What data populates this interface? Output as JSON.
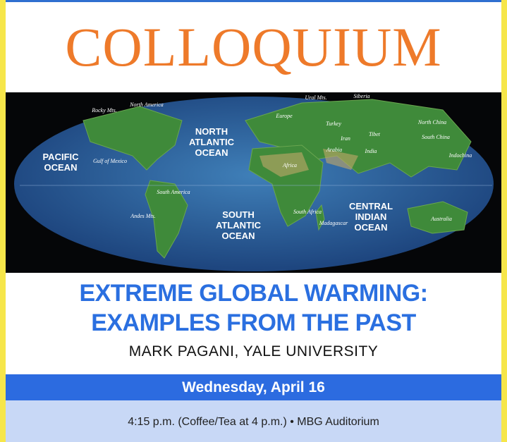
{
  "header": {
    "title": "COLLOQUIUM"
  },
  "map": {
    "ocean_labels": [
      {
        "lines": [
          "PACIFIC",
          "OCEAN"
        ]
      },
      {
        "lines": [
          "NORTH",
          "ATLANTIC",
          "OCEAN"
        ]
      },
      {
        "lines": [
          "SOUTH",
          "ATLANTIC",
          "OCEAN"
        ]
      },
      {
        "lines": [
          "CENTRAL",
          "INDIAN",
          "OCEAN"
        ]
      }
    ],
    "place_labels": [
      "Rocky Mts.",
      "North America",
      "Gulf of Mexico",
      "Ural Mts.",
      "Siberia",
      "Europe",
      "Turkey",
      "Iran",
      "Arabia",
      "Africa",
      "India",
      "Tibet",
      "North China",
      "South China",
      "Indochina",
      "South America",
      "Andes Mts.",
      "South Africa",
      "Madagascar",
      "Australia"
    ]
  },
  "talk": {
    "title_lines": [
      "EXTREME GLOBAL WARMING:",
      "EXAMPLES FROM THE PAST"
    ],
    "speaker": "MARK PAGANI, YALE UNIVERSITY"
  },
  "event": {
    "date": "Wednesday, April 16",
    "details": "4:15 p.m. (Coffee/Tea at 4 p.m.) • MBG Auditorium"
  }
}
